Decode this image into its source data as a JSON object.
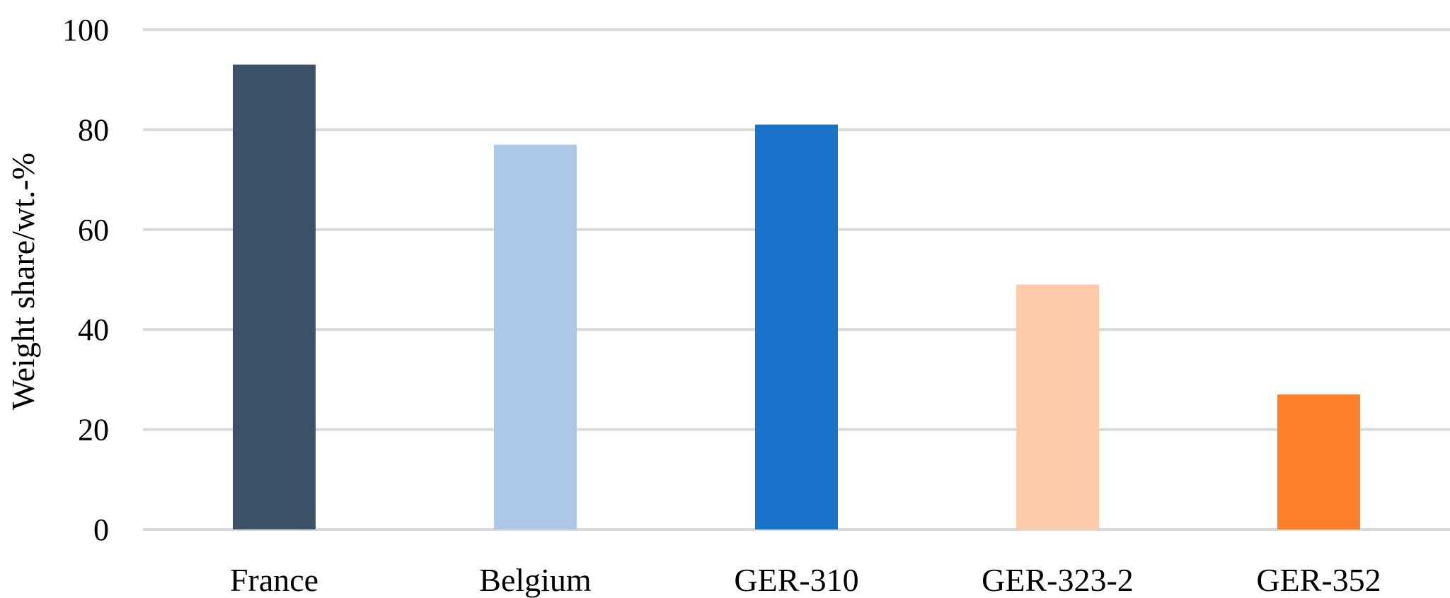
{
  "chart_data": {
    "type": "bar",
    "categories": [
      "France",
      "Belgium",
      "GER-310",
      "GER-323-2",
      "GER-352"
    ],
    "values": [
      93,
      77,
      81,
      49,
      27
    ],
    "colors": [
      "#3d5269",
      "#adc8e8",
      "#1a73c8",
      "#fdcbaa",
      "#fd7f2a"
    ],
    "title": "",
    "xlabel": "",
    "ylabel": "Weight share/wt.-%",
    "ylim": [
      0,
      100
    ],
    "yticks": [
      0,
      20,
      40,
      60,
      80,
      100
    ],
    "grid": true,
    "gridline_color": "#d9d9d9"
  }
}
